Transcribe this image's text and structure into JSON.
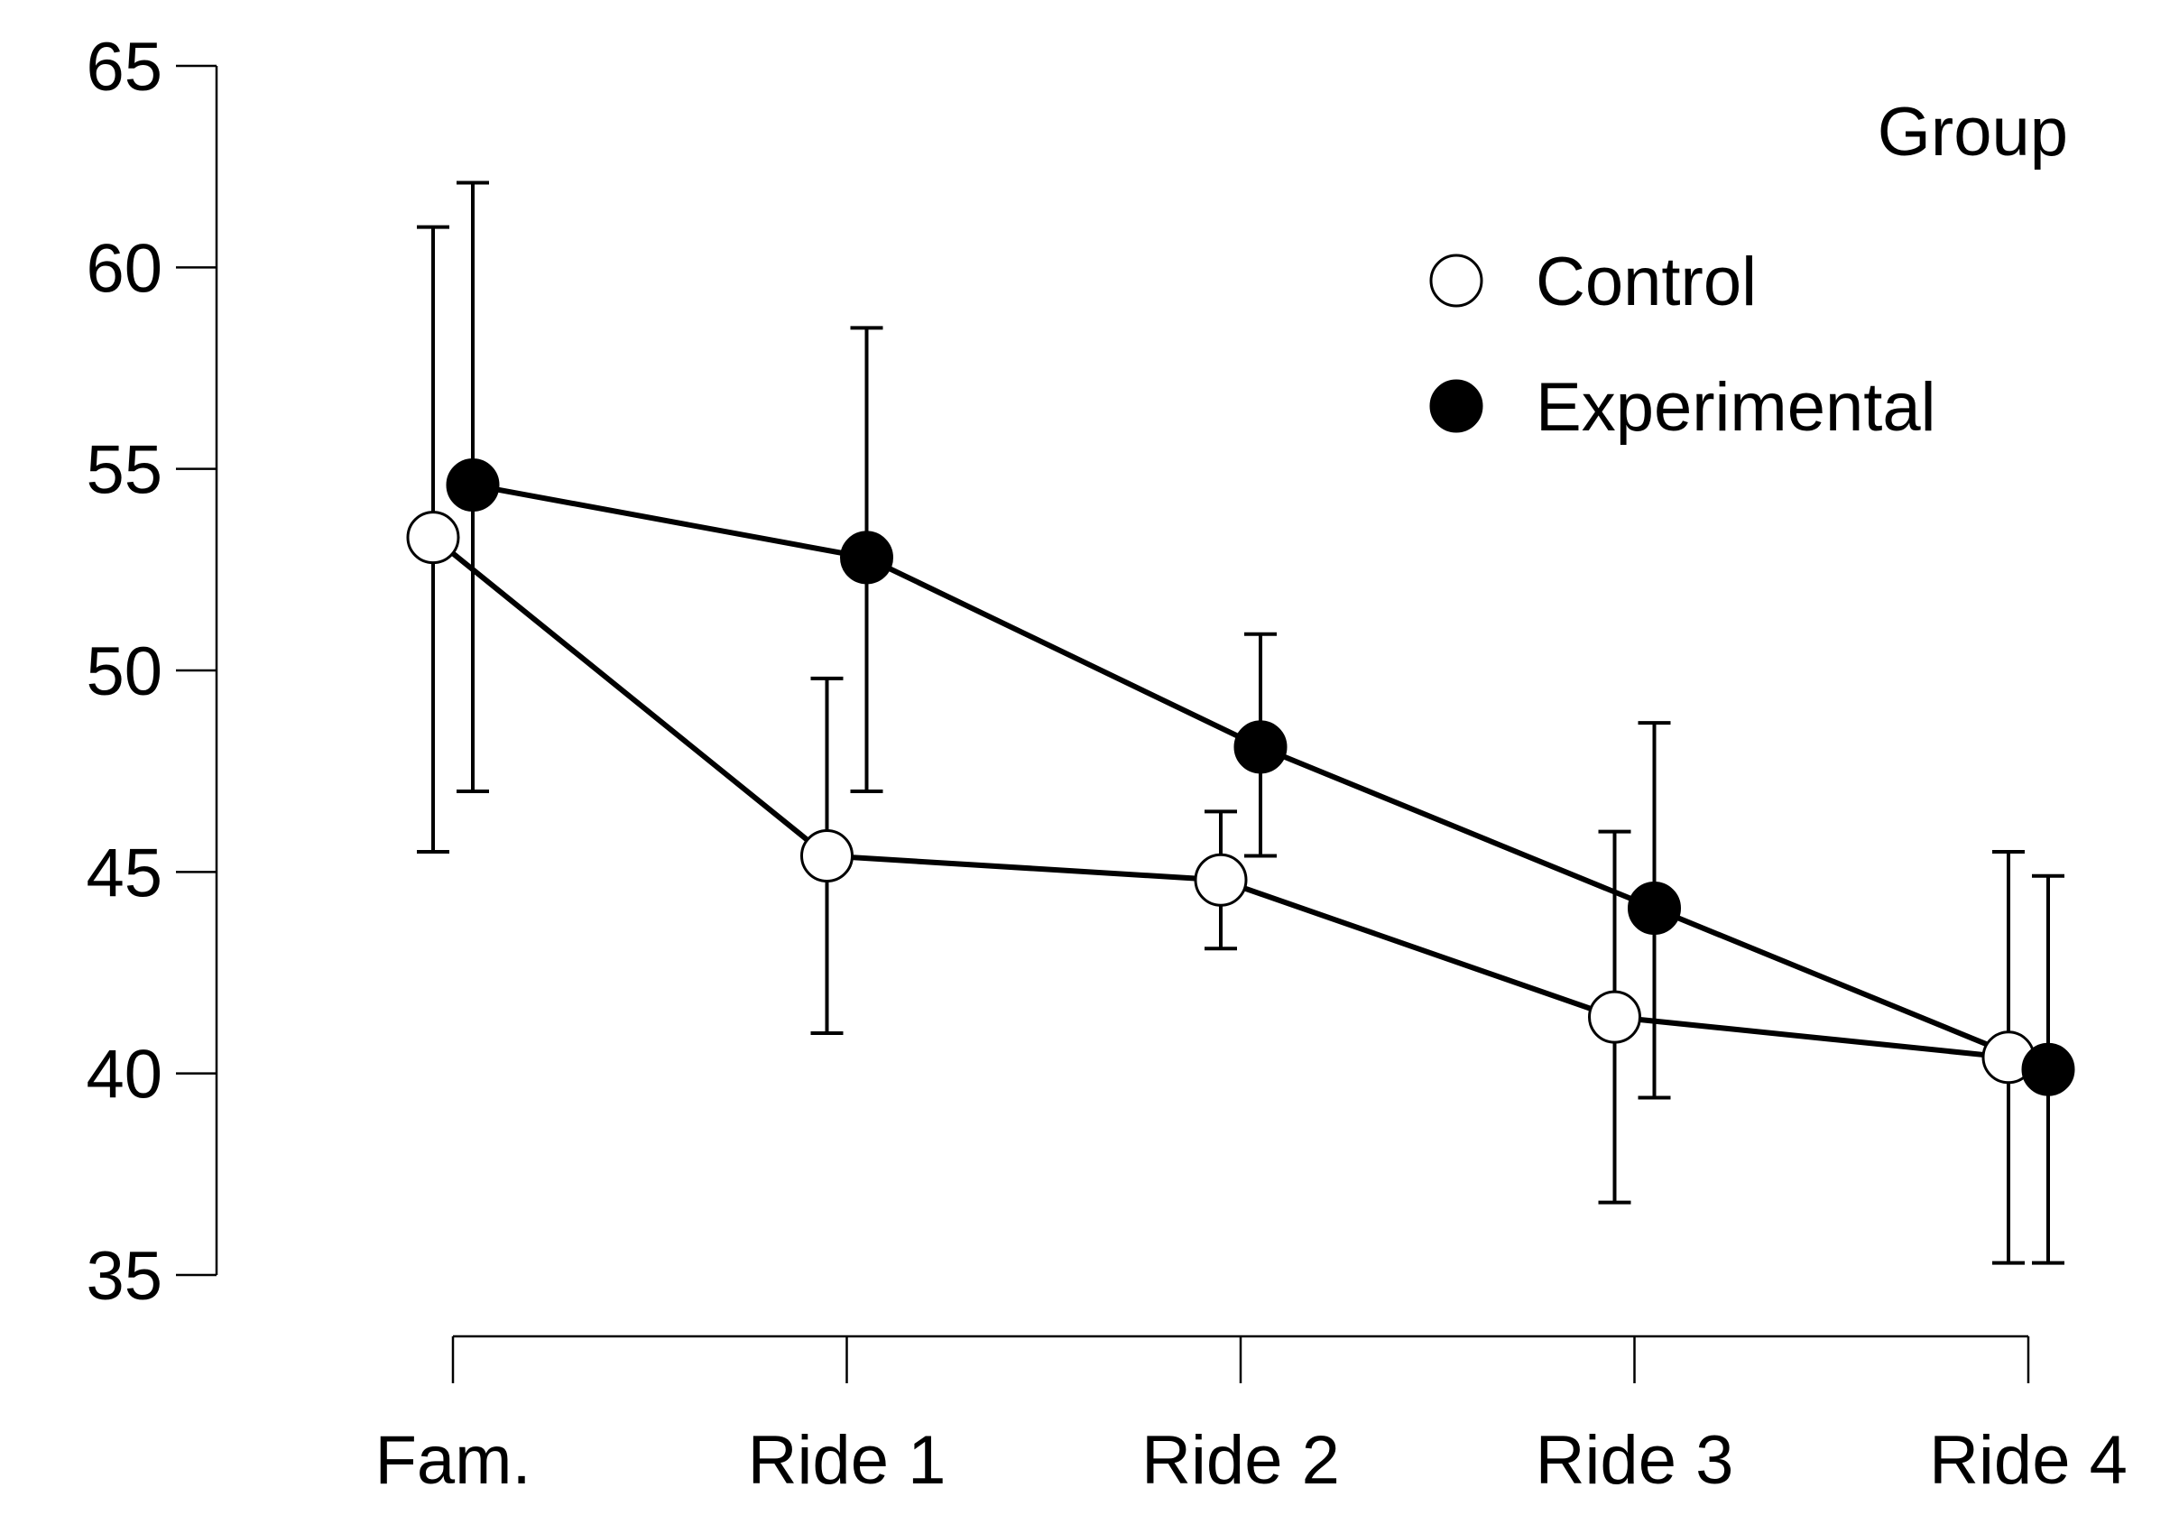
{
  "chart_data": {
    "type": "line",
    "title": "",
    "xlabel": "",
    "ylabel": "",
    "categories": [
      "Fam.",
      "Ride 1",
      "Ride 2",
      "Ride 3",
      "Ride 4"
    ],
    "ylim": [
      35,
      65
    ],
    "yticks": [
      35,
      40,
      45,
      50,
      55,
      60,
      65
    ],
    "legend": {
      "title": "Group",
      "position": "top-right"
    },
    "series": [
      {
        "name": "Control",
        "marker": "open-circle",
        "color": "#ffffff",
        "values": [
          53.3,
          45.4,
          44.8,
          41.4,
          40.4
        ],
        "err_low": [
          45.5,
          41.0,
          43.1,
          36.8,
          35.3
        ],
        "err_high": [
          61.0,
          49.8,
          46.5,
          46.0,
          45.5
        ]
      },
      {
        "name": "Experimental",
        "marker": "filled-circle",
        "color": "#000000",
        "values": [
          54.6,
          52.8,
          48.1,
          44.1,
          40.1
        ],
        "err_low": [
          47.0,
          47.0,
          45.4,
          39.4,
          35.3
        ],
        "err_high": [
          62.1,
          58.5,
          50.9,
          48.7,
          44.9
        ]
      }
    ]
  }
}
